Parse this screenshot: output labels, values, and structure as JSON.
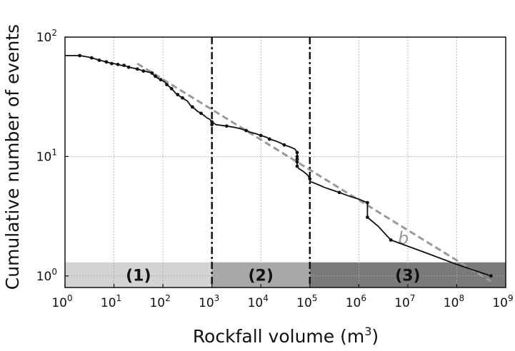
{
  "chart_data": {
    "type": "line",
    "xlabel": "Rockfall volume (m",
    "xlabel_sup": "3",
    "xlabel_tail": ")",
    "ylabel": "Cumulative number of events",
    "x_scale": "log",
    "y_scale": "log",
    "xlim": [
      1,
      1000000000
    ],
    "ylim": [
      0.8,
      100
    ],
    "grid": true,
    "x_ticks": [
      {
        "base": "10",
        "exp": "0",
        "value": 1
      },
      {
        "base": "10",
        "exp": "1",
        "value": 10
      },
      {
        "base": "10",
        "exp": "2",
        "value": 100
      },
      {
        "base": "10",
        "exp": "3",
        "value": 1000
      },
      {
        "base": "10",
        "exp": "4",
        "value": 10000
      },
      {
        "base": "10",
        "exp": "5",
        "value": 100000
      },
      {
        "base": "10",
        "exp": "6",
        "value": 1000000
      },
      {
        "base": "10",
        "exp": "7",
        "value": 10000000
      },
      {
        "base": "10",
        "exp": "8",
        "value": 100000000
      },
      {
        "base": "10",
        "exp": "9",
        "value": 1000000000
      }
    ],
    "y_ticks": [
      {
        "base": "10",
        "exp": "0",
        "value": 1
      },
      {
        "base": "10",
        "exp": "1",
        "value": 10
      },
      {
        "base": "10",
        "exp": "2",
        "value": 100
      }
    ],
    "zones": [
      {
        "label": "(1)",
        "from": 1,
        "to": 1000,
        "color": "#d3d3d3"
      },
      {
        "label": "(2)",
        "from": 1000,
        "to": 100000,
        "color": "#a8a8a8"
      },
      {
        "label": "(3)",
        "from": 100000,
        "to": 1000000000,
        "color": "#7a7a7a"
      }
    ],
    "zone_band_y": [
      0.8,
      1.3
    ],
    "vertical_lines": [
      1000,
      100000
    ],
    "fit_line": {
      "label": "b",
      "color": "#999999",
      "from": [
        30,
        60
      ],
      "to": [
        500000000,
        0.9
      ]
    },
    "series": [
      {
        "color": "#111111",
        "points": [
          [
            1,
            70
          ],
          [
            2,
            70
          ],
          [
            3,
            68
          ],
          [
            3.5,
            67
          ],
          [
            4,
            66
          ],
          [
            5,
            64
          ],
          [
            6,
            63
          ],
          [
            7,
            62
          ],
          [
            8,
            61
          ],
          [
            9,
            60
          ],
          [
            10,
            60
          ],
          [
            12,
            59
          ],
          [
            14,
            58
          ],
          [
            16,
            58
          ],
          [
            18,
            57
          ],
          [
            20,
            56
          ],
          [
            25,
            55
          ],
          [
            30,
            54
          ],
          [
            35,
            53
          ],
          [
            40,
            52
          ],
          [
            50,
            51
          ],
          [
            60,
            50
          ],
          [
            65,
            48
          ],
          [
            70,
            47
          ],
          [
            75,
            46
          ],
          [
            80,
            45
          ],
          [
            90,
            44
          ],
          [
            100,
            43
          ],
          [
            110,
            42
          ],
          [
            120,
            40
          ],
          [
            130,
            39
          ],
          [
            140,
            38
          ],
          [
            150,
            37
          ],
          [
            160,
            36
          ],
          [
            170,
            35
          ],
          [
            180,
            34
          ],
          [
            200,
            33
          ],
          [
            220,
            32
          ],
          [
            250,
            31
          ],
          [
            280,
            30
          ],
          [
            320,
            29
          ],
          [
            360,
            27
          ],
          [
            400,
            26
          ],
          [
            450,
            25
          ],
          [
            500,
            24
          ],
          [
            600,
            23
          ],
          [
            700,
            22
          ],
          [
            800,
            21
          ],
          [
            900,
            20.5
          ],
          [
            1000,
            19.5
          ],
          [
            1100,
            19
          ],
          [
            1200,
            18.5
          ],
          [
            2000,
            18
          ],
          [
            3000,
            17.5
          ],
          [
            4000,
            17
          ],
          [
            5000,
            16.5
          ],
          [
            6000,
            16
          ],
          [
            8000,
            15.5
          ],
          [
            10000,
            15
          ],
          [
            13000,
            14.5
          ],
          [
            15000,
            14
          ],
          [
            20000,
            13.5
          ],
          [
            25000,
            13
          ],
          [
            30000,
            12.5
          ],
          [
            40000,
            12
          ],
          [
            50000,
            11.5
          ],
          [
            55000,
            10.8
          ],
          [
            55000,
            10
          ],
          [
            55000,
            9.5
          ],
          [
            55000,
            9
          ],
          [
            55000,
            8.3
          ],
          [
            60000,
            7.9
          ],
          [
            70000,
            7.6
          ],
          [
            80000,
            7.3
          ],
          [
            90000,
            7
          ],
          [
            100000,
            6.5
          ],
          [
            100000,
            6.2
          ],
          [
            150000,
            5.8
          ],
          [
            200000,
            5.5
          ],
          [
            300000,
            5.2
          ],
          [
            400000,
            5.0
          ],
          [
            600000,
            4.7
          ],
          [
            1000000,
            4.4
          ],
          [
            1500000,
            4.1
          ],
          [
            1500000,
            3.7
          ],
          [
            1500000,
            3.4
          ],
          [
            1500000,
            3.1
          ],
          [
            2500000,
            2.6
          ],
          [
            4500000,
            2.0
          ],
          [
            20000000,
            1.6
          ],
          [
            100000000,
            1.25
          ],
          [
            500000000,
            1.0
          ]
        ],
        "marker_points": [
          [
            2,
            70
          ],
          [
            3.5,
            67
          ],
          [
            5,
            64
          ],
          [
            7,
            62
          ],
          [
            9,
            60
          ],
          [
            12,
            59
          ],
          [
            16,
            58
          ],
          [
            20,
            56
          ],
          [
            30,
            54
          ],
          [
            40,
            52
          ],
          [
            60,
            50
          ],
          [
            70,
            47
          ],
          [
            90,
            44
          ],
          [
            120,
            40
          ],
          [
            150,
            37
          ],
          [
            200,
            33
          ],
          [
            250,
            31
          ],
          [
            400,
            26
          ],
          [
            600,
            23
          ],
          [
            1000,
            19.5
          ],
          [
            1000,
            18.5
          ],
          [
            2000,
            18
          ],
          [
            5000,
            16.5
          ],
          [
            10000,
            15
          ],
          [
            15000,
            14
          ],
          [
            30000,
            12.5
          ],
          [
            55000,
            10.8
          ],
          [
            55000,
            10
          ],
          [
            55000,
            9.5
          ],
          [
            55000,
            9
          ],
          [
            55000,
            8.3
          ],
          [
            100000,
            6.5
          ],
          [
            400000,
            5.0
          ],
          [
            1500000,
            4.1
          ],
          [
            1500000,
            3.1
          ],
          [
            4500000,
            2.0
          ],
          [
            500000000,
            1.0
          ]
        ]
      }
    ]
  }
}
